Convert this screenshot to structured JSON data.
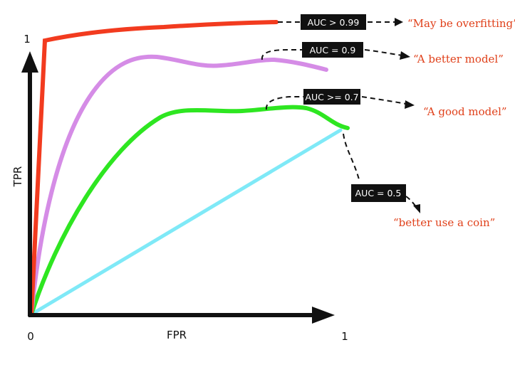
{
  "axes": {
    "x_label": "FPR",
    "y_label": "TPR",
    "origin_label": "0",
    "x_max_label": "1",
    "y_max_label": "1"
  },
  "curves": [
    {
      "id": "overfit",
      "color": "#f23b1f",
      "auc_label": "AUC > 0.99",
      "note": "“May be overfitting”"
    },
    {
      "id": "better",
      "color": "#d58ce6",
      "auc_label": "AUC = 0.9",
      "note": "“A better model”"
    },
    {
      "id": "good",
      "color": "#2ee621",
      "auc_label": "AUC >= 0.7",
      "note": "“A good model”"
    },
    {
      "id": "random",
      "color": "#7fe9f7",
      "auc_label": "AUC = 0.5",
      "note": "“better use a coin”"
    }
  ],
  "colors": {
    "axis": "#111111",
    "badge_bg": "#111111",
    "badge_text": "#ffffff",
    "note_text": "#e0401a"
  }
}
